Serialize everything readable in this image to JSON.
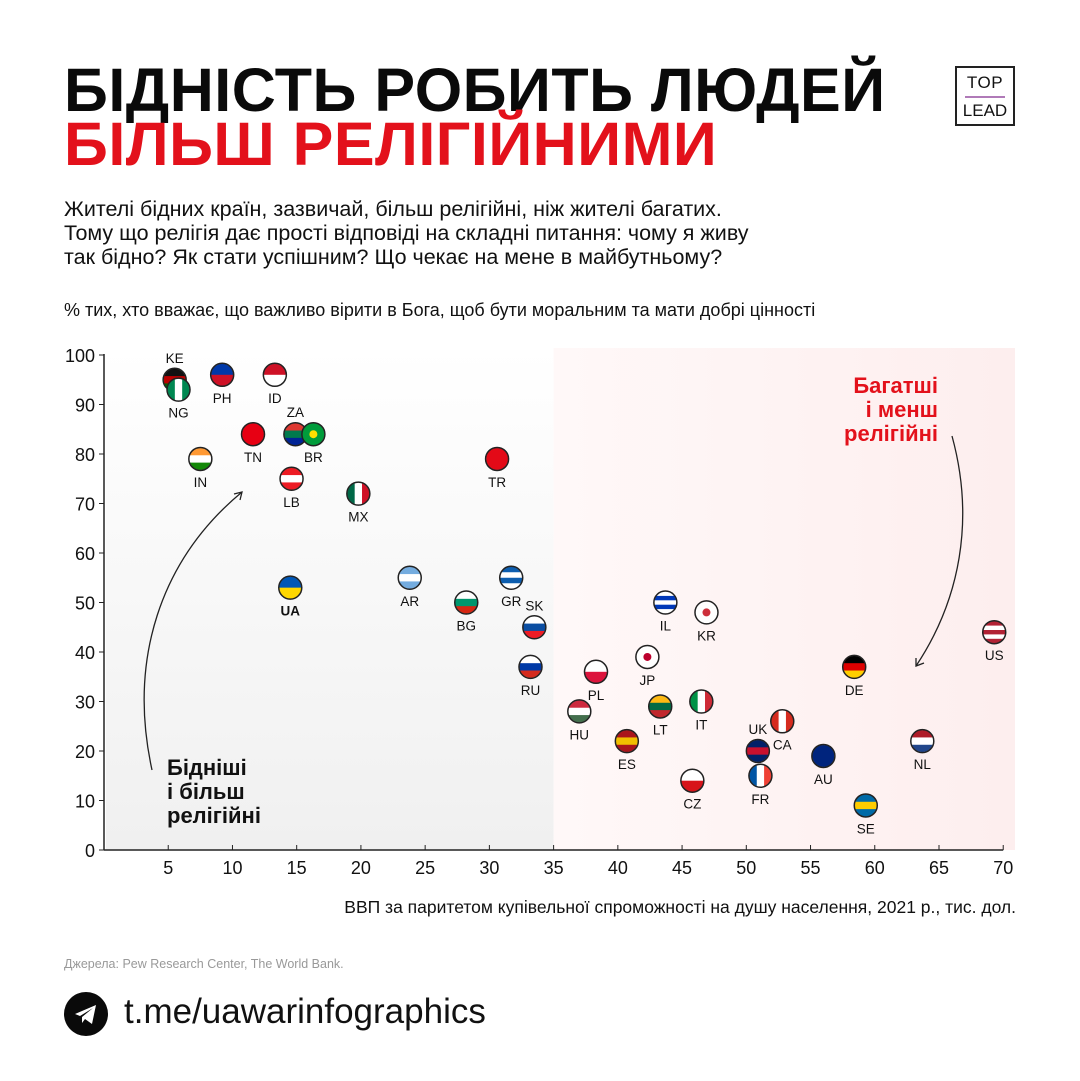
{
  "header": {
    "title_line1": "БІДНІСТЬ РОБИТЬ ЛЮДЕЙ",
    "title_line2": "БІЛЬШ РЕЛІГІЙНИМИ",
    "logo_top": "TOP",
    "logo_bottom": "LEAD",
    "subtitle": [
      "Жителі бідних країн, зазвичай, більш релігійні, ніж жителі багатих.",
      "Тому що релігія дає прості відповіді на складні питання: чому я живу",
      "так бідно? Як стати успішним? Що чекає на мене в майбутньому?"
    ]
  },
  "chart_data": {
    "type": "scatter",
    "title": "% тих, хто вважає, що важливо вірити в Бога, щоб бути моральним та мати добрі цінності",
    "xlabel": "ВВП за паритетом купівельної спроможності на душу населення, 2021 р., тис. дол.",
    "ylabel": "",
    "xlim": [
      0,
      70
    ],
    "ylim": [
      0,
      100
    ],
    "xticks": [
      5,
      10,
      15,
      20,
      25,
      30,
      35,
      40,
      45,
      50,
      55,
      60,
      65,
      70
    ],
    "yticks": [
      0,
      10,
      20,
      30,
      40,
      50,
      60,
      70,
      80,
      90,
      100
    ],
    "grid": false,
    "regions": [
      {
        "from": 0,
        "to": 35,
        "color": "#f0f0f0"
      },
      {
        "from": 35,
        "to": 71,
        "color": "#fdeeee"
      }
    ],
    "annotations": [
      {
        "text": [
          "Бідніші",
          "і більш",
          "релігійні"
        ],
        "color": "#111111"
      },
      {
        "text": [
          "Багатші",
          "і менш",
          "релігійні"
        ],
        "color": "#e3111b"
      }
    ],
    "points": [
      {
        "code": "KE",
        "x": 5.5,
        "y": 95,
        "label": "above",
        "flag": [
          "#111",
          "#bb0000",
          "#006600"
        ]
      },
      {
        "code": "NG",
        "x": 5.8,
        "y": 93,
        "label": "below",
        "flag": [
          "#008751",
          "#ffffff",
          "#008751"
        ],
        "dir": "v"
      },
      {
        "code": "PH",
        "x": 9.2,
        "y": 96,
        "label": "below",
        "flag": [
          "#0038a8",
          "#ce1126"
        ]
      },
      {
        "code": "ID",
        "x": 13.3,
        "y": 96,
        "label": "below",
        "flag": [
          "#ce1126",
          "#ffffff"
        ]
      },
      {
        "code": "TN",
        "x": 11.6,
        "y": 84,
        "label": "below",
        "flag": [
          "#e70013"
        ]
      },
      {
        "code": "ZA",
        "x": 14.9,
        "y": 84,
        "label": "above",
        "flag": [
          "#de3831",
          "#007a4d",
          "#002395"
        ]
      },
      {
        "code": "BR",
        "x": 16.3,
        "y": 84,
        "label": "below",
        "flag": [
          "#009c3b"
        ],
        "dot": "#ffdf00"
      },
      {
        "code": "IN",
        "x": 7.5,
        "y": 79,
        "label": "below",
        "flag": [
          "#ff9933",
          "#ffffff",
          "#138808"
        ]
      },
      {
        "code": "LB",
        "x": 14.6,
        "y": 75,
        "label": "below",
        "flag": [
          "#ed1c24",
          "#ffffff",
          "#ed1c24"
        ]
      },
      {
        "code": "MX",
        "x": 19.8,
        "y": 72,
        "label": "below",
        "flag": [
          "#006847",
          "#ffffff",
          "#ce1126"
        ],
        "dir": "v"
      },
      {
        "code": "TR",
        "x": 30.6,
        "y": 79,
        "label": "below",
        "flag": [
          "#e30a17"
        ]
      },
      {
        "code": "UA",
        "x": 14.5,
        "y": 53,
        "label": "below",
        "bold": true,
        "flag": [
          "#0057b7",
          "#ffd700"
        ]
      },
      {
        "code": "AR",
        "x": 23.8,
        "y": 55,
        "label": "below",
        "flag": [
          "#74acdf",
          "#ffffff",
          "#74acdf"
        ]
      },
      {
        "code": "BG",
        "x": 28.2,
        "y": 50,
        "label": "below",
        "flag": [
          "#ffffff",
          "#00966e",
          "#d62612"
        ]
      },
      {
        "code": "GR",
        "x": 31.7,
        "y": 55,
        "label": "below",
        "flag": [
          "#0d5eaf",
          "#ffffff",
          "#0d5eaf",
          "#ffffff"
        ]
      },
      {
        "code": "SK",
        "x": 33.5,
        "y": 45,
        "label": "above",
        "flag": [
          "#ffffff",
          "#0b4ea2",
          "#ee1c25"
        ]
      },
      {
        "code": "RU",
        "x": 33.2,
        "y": 37,
        "label": "below",
        "flag": [
          "#ffffff",
          "#0039a6",
          "#d52b1e"
        ]
      },
      {
        "code": "PL",
        "x": 38.3,
        "y": 36,
        "label": "below",
        "flag": [
          "#ffffff",
          "#dc143c"
        ]
      },
      {
        "code": "HU",
        "x": 37,
        "y": 28,
        "label": "below",
        "flag": [
          "#cd2a3e",
          "#ffffff",
          "#436f4d"
        ]
      },
      {
        "code": "JP",
        "x": 42.3,
        "y": 39,
        "label": "below",
        "flag": [
          "#ffffff"
        ],
        "dot": "#bc002d"
      },
      {
        "code": "ES",
        "x": 40.7,
        "y": 22,
        "label": "below",
        "flag": [
          "#aa151b",
          "#f1bf00",
          "#aa151b"
        ]
      },
      {
        "code": "LT",
        "x": 43.3,
        "y": 29,
        "label": "below",
        "flag": [
          "#fdb913",
          "#006a44",
          "#c1272d"
        ]
      },
      {
        "code": "IL",
        "x": 43.7,
        "y": 50,
        "label": "below",
        "flag": [
          "#ffffff",
          "#0038b8",
          "#ffffff",
          "#0038b8",
          "#ffffff"
        ]
      },
      {
        "code": "KR",
        "x": 46.9,
        "y": 48,
        "label": "below",
        "flag": [
          "#ffffff"
        ],
        "dot": "#cd2e3a"
      },
      {
        "code": "IT",
        "x": 46.5,
        "y": 30,
        "label": "below",
        "flag": [
          "#009246",
          "#ffffff",
          "#ce2b37"
        ],
        "dir": "v"
      },
      {
        "code": "CZ",
        "x": 45.8,
        "y": 14,
        "label": "below",
        "flag": [
          "#ffffff",
          "#d7141a"
        ]
      },
      {
        "code": "UK",
        "x": 50.9,
        "y": 20,
        "label": "above",
        "flag": [
          "#012169",
          "#c8102e",
          "#012169"
        ]
      },
      {
        "code": "CA",
        "x": 52.8,
        "y": 26,
        "label": "below",
        "flag": [
          "#d52b1e",
          "#ffffff",
          "#d52b1e"
        ],
        "dir": "v"
      },
      {
        "code": "FR",
        "x": 51.1,
        "y": 15,
        "label": "below",
        "flag": [
          "#0055a4",
          "#ffffff",
          "#ef4135"
        ],
        "dir": "v"
      },
      {
        "code": "AU",
        "x": 56,
        "y": 19,
        "label": "below",
        "flag": [
          "#00247d"
        ]
      },
      {
        "code": "DE",
        "x": 58.4,
        "y": 37,
        "label": "below",
        "flag": [
          "#000000",
          "#dd0000",
          "#ffce00"
        ]
      },
      {
        "code": "NL",
        "x": 63.7,
        "y": 22,
        "label": "below",
        "flag": [
          "#ae1c28",
          "#ffffff",
          "#21468b"
        ]
      },
      {
        "code": "SE",
        "x": 59.3,
        "y": 9,
        "label": "below",
        "flag": [
          "#006aa7",
          "#fecc00",
          "#006aa7"
        ]
      },
      {
        "code": "US",
        "x": 69.3,
        "y": 44,
        "label": "below",
        "flag": [
          "#b22234",
          "#ffffff",
          "#b22234",
          "#ffffff",
          "#b22234"
        ]
      }
    ]
  },
  "footer": {
    "source": "Джерела: Pew Research Center, The World Bank.",
    "link": "t.me/uawarinfographics"
  }
}
